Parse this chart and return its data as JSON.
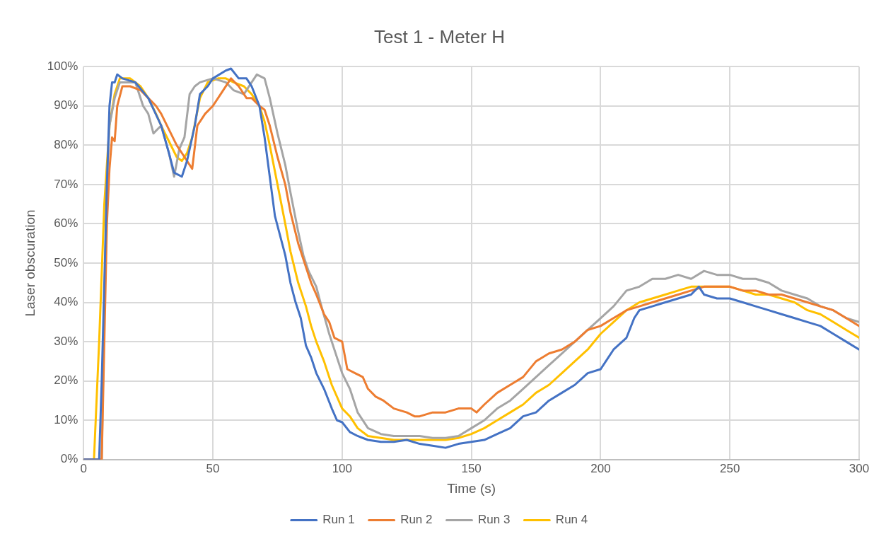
{
  "chart_data": {
    "type": "line",
    "title": "Test 1 - Meter H",
    "xlabel": "Time (s)",
    "ylabel": "Laser obscuration",
    "xlim": [
      0,
      300
    ],
    "xticks": [
      0,
      50,
      100,
      150,
      200,
      250,
      300
    ],
    "ylim": [
      0,
      100
    ],
    "yticks": [
      {
        "value": 0,
        "label": "0%"
      },
      {
        "value": 10,
        "label": "10%"
      },
      {
        "value": 20,
        "label": "20%"
      },
      {
        "value": 30,
        "label": "30%"
      },
      {
        "value": 40,
        "label": "40%"
      },
      {
        "value": 50,
        "label": "50%"
      },
      {
        "value": 60,
        "label": "60%"
      },
      {
        "value": 70,
        "label": "70%"
      },
      {
        "value": 80,
        "label": "80%"
      },
      {
        "value": 90,
        "label": "90%"
      },
      {
        "value": 100,
        "label": "100%"
      }
    ],
    "grid": true,
    "legend": "bottom",
    "marker": "none",
    "line_style": "solid",
    "series": [
      {
        "name": "Run 1",
        "color": "#4472c4",
        "x": [
          0,
          6,
          7,
          9,
          10,
          11,
          12,
          13,
          15,
          20,
          25,
          30,
          33,
          35,
          38,
          40,
          43,
          45,
          48,
          50,
          55,
          57,
          60,
          63,
          65,
          68,
          70,
          72,
          74,
          76,
          78,
          80,
          82,
          84,
          86,
          88,
          90,
          93,
          96,
          98,
          100,
          103,
          106,
          110,
          115,
          120,
          125,
          130,
          135,
          140,
          145,
          150,
          155,
          160,
          165,
          170,
          175,
          180,
          185,
          190,
          195,
          200,
          205,
          210,
          213,
          215,
          220,
          225,
          230,
          235,
          238,
          240,
          245,
          250,
          255,
          260,
          265,
          270,
          275,
          280,
          285,
          290,
          295,
          300
        ],
        "values": [
          0,
          0,
          20,
          70,
          90,
          96,
          96,
          98,
          97,
          96,
          92,
          85,
          78,
          73,
          72,
          76,
          85,
          93,
          95,
          97,
          99,
          99.5,
          97,
          97,
          95,
          90,
          82,
          72,
          62,
          57,
          52,
          45,
          40,
          36,
          29,
          26,
          22,
          18,
          13,
          10,
          9.5,
          7,
          6,
          5,
          4.5,
          4.5,
          5,
          4,
          3.5,
          3,
          4,
          4.5,
          5,
          6.5,
          8,
          11,
          12,
          15,
          17,
          19,
          22,
          23,
          28,
          31,
          36,
          38,
          39,
          40,
          41,
          42,
          44,
          42,
          41,
          41,
          40,
          39,
          38,
          37,
          36,
          35,
          34,
          32,
          30,
          28
        ]
      },
      {
        "name": "Run 2",
        "color": "#ed7d31",
        "x": [
          0,
          7,
          8,
          9,
          10,
          11,
          12,
          13,
          15,
          18,
          22,
          25,
          28,
          30,
          33,
          36,
          40,
          42,
          44,
          47,
          50,
          53,
          57,
          60,
          63,
          65,
          68,
          70,
          72,
          75,
          78,
          80,
          83,
          85,
          88,
          90,
          93,
          95,
          97,
          100,
          102,
          105,
          108,
          110,
          113,
          116,
          120,
          125,
          128,
          130,
          135,
          140,
          145,
          150,
          152,
          155,
          160,
          165,
          170,
          175,
          180,
          185,
          190,
          195,
          200,
          205,
          210,
          215,
          220,
          225,
          230,
          235,
          240,
          245,
          250,
          255,
          260,
          265,
          270,
          275,
          280,
          285,
          290,
          295,
          300
        ],
        "values": [
          0,
          0,
          30,
          60,
          74,
          82,
          81,
          90,
          95,
          95,
          94,
          92,
          90,
          88,
          84,
          80,
          76,
          74,
          85,
          88,
          90,
          93,
          97,
          95,
          92,
          92,
          90,
          89,
          85,
          77,
          70,
          63,
          55,
          51,
          45,
          42,
          37,
          35,
          31,
          30,
          23,
          22,
          21,
          18,
          16,
          15,
          13,
          12,
          11,
          11,
          12,
          12,
          13,
          13,
          12,
          14,
          17,
          19,
          21,
          25,
          27,
          28,
          30,
          33,
          34,
          36,
          38,
          39,
          40,
          41,
          42,
          43,
          44,
          44,
          44,
          43,
          43,
          42,
          42,
          41,
          40,
          39,
          38,
          36,
          34
        ]
      },
      {
        "name": "Run 3",
        "color": "#a5a5a5",
        "x": [
          0,
          7,
          8,
          9,
          10,
          12,
          14,
          17,
          20,
          23,
          25,
          27,
          30,
          33,
          35,
          37,
          39,
          41,
          43,
          45,
          50,
          55,
          58,
          62,
          65,
          67,
          70,
          72,
          75,
          78,
          80,
          83,
          85,
          87,
          90,
          92,
          95,
          98,
          100,
          103,
          106,
          110,
          115,
          120,
          125,
          130,
          135,
          140,
          145,
          150,
          155,
          160,
          165,
          170,
          175,
          180,
          185,
          190,
          195,
          200,
          205,
          210,
          215,
          220,
          225,
          230,
          235,
          240,
          245,
          250,
          255,
          260,
          265,
          270,
          275,
          280,
          285,
          290,
          295,
          300
        ],
        "values": [
          0,
          0,
          40,
          70,
          85,
          92,
          96,
          96,
          96,
          90,
          88,
          83,
          85,
          78,
          72,
          79,
          82,
          93,
          95,
          96,
          97,
          96,
          94,
          93,
          96,
          98,
          97,
          92,
          83,
          75,
          68,
          58,
          52,
          48,
          44,
          39,
          32,
          26,
          22,
          18,
          12,
          8,
          6.5,
          6,
          6,
          6,
          5.5,
          5.5,
          6,
          8,
          10,
          13,
          15,
          18,
          21,
          24,
          27,
          30,
          33,
          36,
          39,
          43,
          44,
          46,
          46,
          47,
          46,
          48,
          47,
          47,
          46,
          46,
          45,
          43,
          42,
          41,
          39,
          38,
          36,
          35
        ]
      },
      {
        "name": "Run 4",
        "color": "#ffc000",
        "x": [
          0,
          4,
          6,
          8,
          10,
          12,
          14,
          18,
          22,
          25,
          28,
          30,
          33,
          36,
          38,
          40,
          42,
          45,
          48,
          52,
          55,
          58,
          62,
          65,
          68,
          70,
          72,
          75,
          78,
          80,
          83,
          86,
          88,
          90,
          93,
          96,
          100,
          103,
          106,
          110,
          115,
          120,
          125,
          130,
          135,
          140,
          145,
          150,
          155,
          160,
          165,
          170,
          175,
          180,
          185,
          190,
          195,
          200,
          205,
          210,
          215,
          220,
          225,
          230,
          235,
          240,
          245,
          250,
          255,
          260,
          265,
          270,
          275,
          280,
          285,
          290,
          295,
          300
        ],
        "values": [
          0,
          0,
          30,
          65,
          85,
          93,
          97,
          97,
          95,
          92,
          88,
          85,
          81,
          77,
          76,
          78,
          82,
          92,
          96,
          97,
          97,
          96,
          95,
          93,
          90,
          86,
          80,
          70,
          60,
          53,
          45,
          39,
          34,
          30,
          25,
          19,
          13,
          11,
          8,
          6,
          5.5,
          5,
          5,
          5,
          5,
          5,
          5.5,
          6.5,
          8,
          10,
          12,
          14,
          17,
          19,
          22,
          25,
          28,
          32,
          35,
          38,
          40,
          41,
          42,
          43,
          44,
          44,
          44,
          44,
          43,
          42,
          42,
          41,
          40,
          38,
          37,
          35,
          33,
          31
        ]
      }
    ]
  }
}
